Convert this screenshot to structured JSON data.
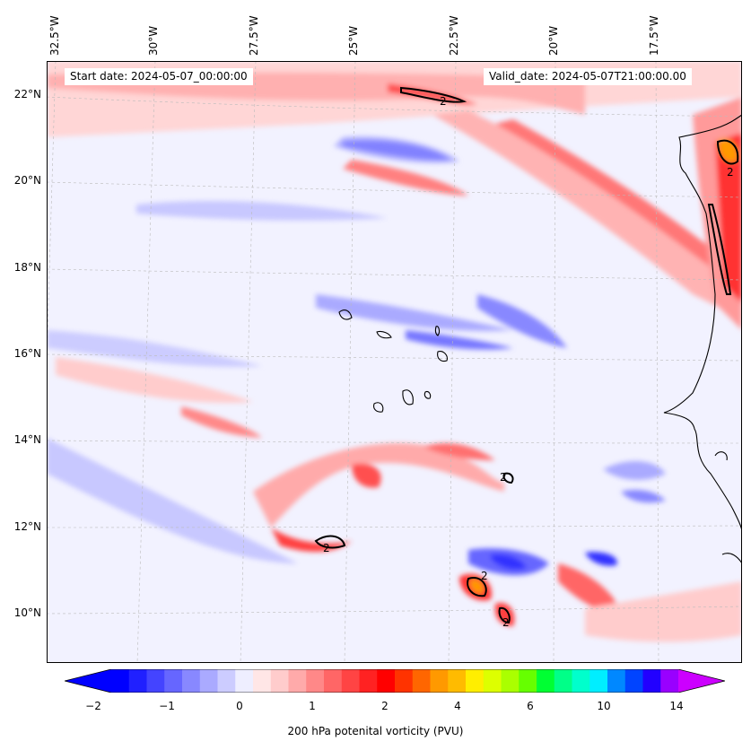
{
  "header": {
    "start_date": "Start date: 2024-05-07_00:00:00",
    "valid_date": "Valid_date: 2024-05-07T21:00:00.00"
  },
  "map": {
    "projection": "lambert-like (tilted graticule)",
    "lon_labels": [
      "32.5°W",
      "30°W",
      "27.5°W",
      "25°W",
      "22.5°W",
      "20°W",
      "17.5°W"
    ],
    "lat_labels": [
      "22°N",
      "20°N",
      "18°N",
      "16°N",
      "14°N",
      "12°N",
      "10°N"
    ],
    "contour_label": "2",
    "colors": {
      "background_field": "#f0f0ff",
      "coastline": "#000000",
      "gridline": "#bbbbbb"
    }
  },
  "colorbar": {
    "label": "200 hPa potenital vorticity (PVU)",
    "ticks": [
      "−2",
      "−1",
      "0",
      "1",
      "2",
      "4",
      "6",
      "10",
      "14"
    ],
    "colors": [
      "#0000ff",
      "#2020ff",
      "#4444ff",
      "#6666ff",
      "#8888ff",
      "#aaaaff",
      "#ccccff",
      "#eeeeff",
      "#ffe6e6",
      "#ffcccc",
      "#ffaaaa",
      "#ff8888",
      "#ff6666",
      "#ff4444",
      "#ff2222",
      "#ff0000",
      "#ff3300",
      "#ff6600",
      "#ff9900",
      "#ffbb00",
      "#ffee00",
      "#ddff00",
      "#aaff00",
      "#66ff00",
      "#00ff33",
      "#00ff88",
      "#00ffcc",
      "#00eeff",
      "#0088ff",
      "#0044ff",
      "#2200ff",
      "#9900ff"
    ],
    "extend_low_color": "#0000ff",
    "extend_high_color": "#cc00ff"
  }
}
